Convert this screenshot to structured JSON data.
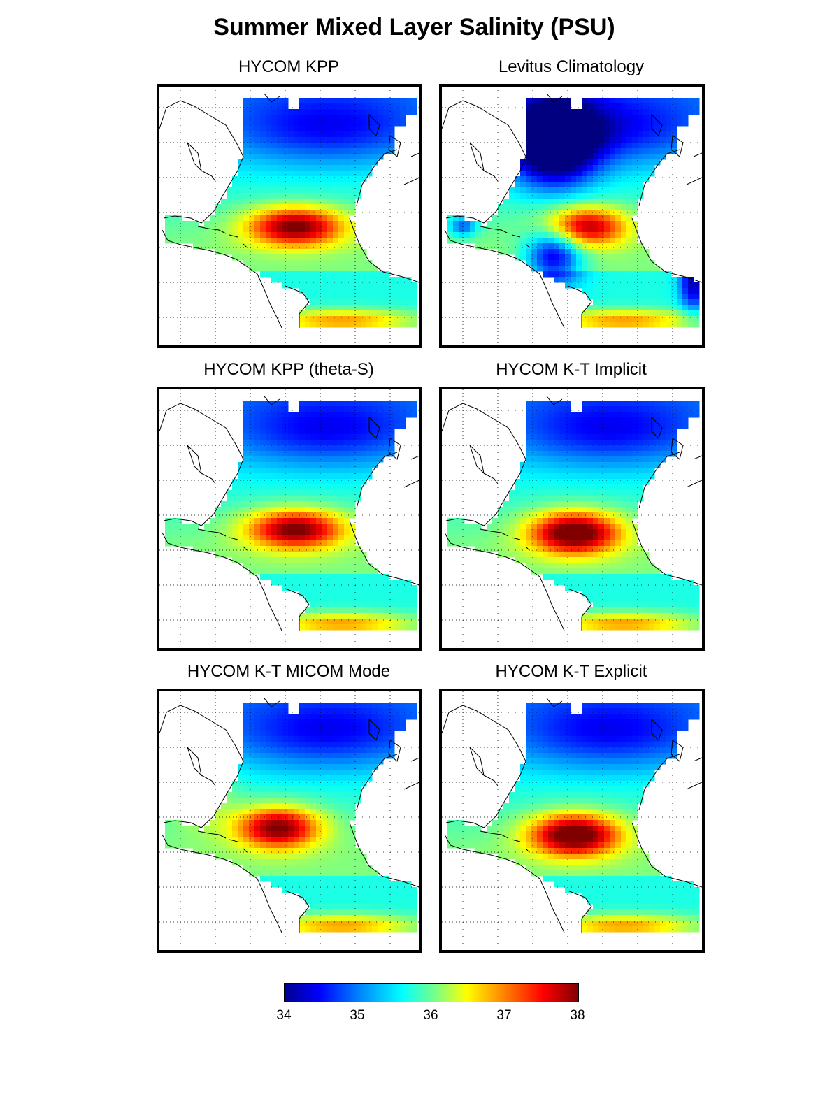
{
  "title": "Summer Mixed Layer Salinity (PSU)",
  "panels": [
    {
      "title": "HYCOM KPP",
      "variant": "kpp"
    },
    {
      "title": "Levitus Climatology",
      "variant": "levitus"
    },
    {
      "title": "HYCOM KPP (theta-S)",
      "variant": "kpp"
    },
    {
      "title": "HYCOM K-T Implicit",
      "variant": "kt"
    },
    {
      "title": "HYCOM K-T MICOM Mode",
      "variant": "micom"
    },
    {
      "title": "HYCOM K-T Explicit",
      "variant": "kt"
    }
  ],
  "colorbar": {
    "min": 34,
    "max": 38,
    "ticks": [
      "34",
      "35",
      "36",
      "37",
      "38"
    ],
    "colormap": "jet"
  }
}
